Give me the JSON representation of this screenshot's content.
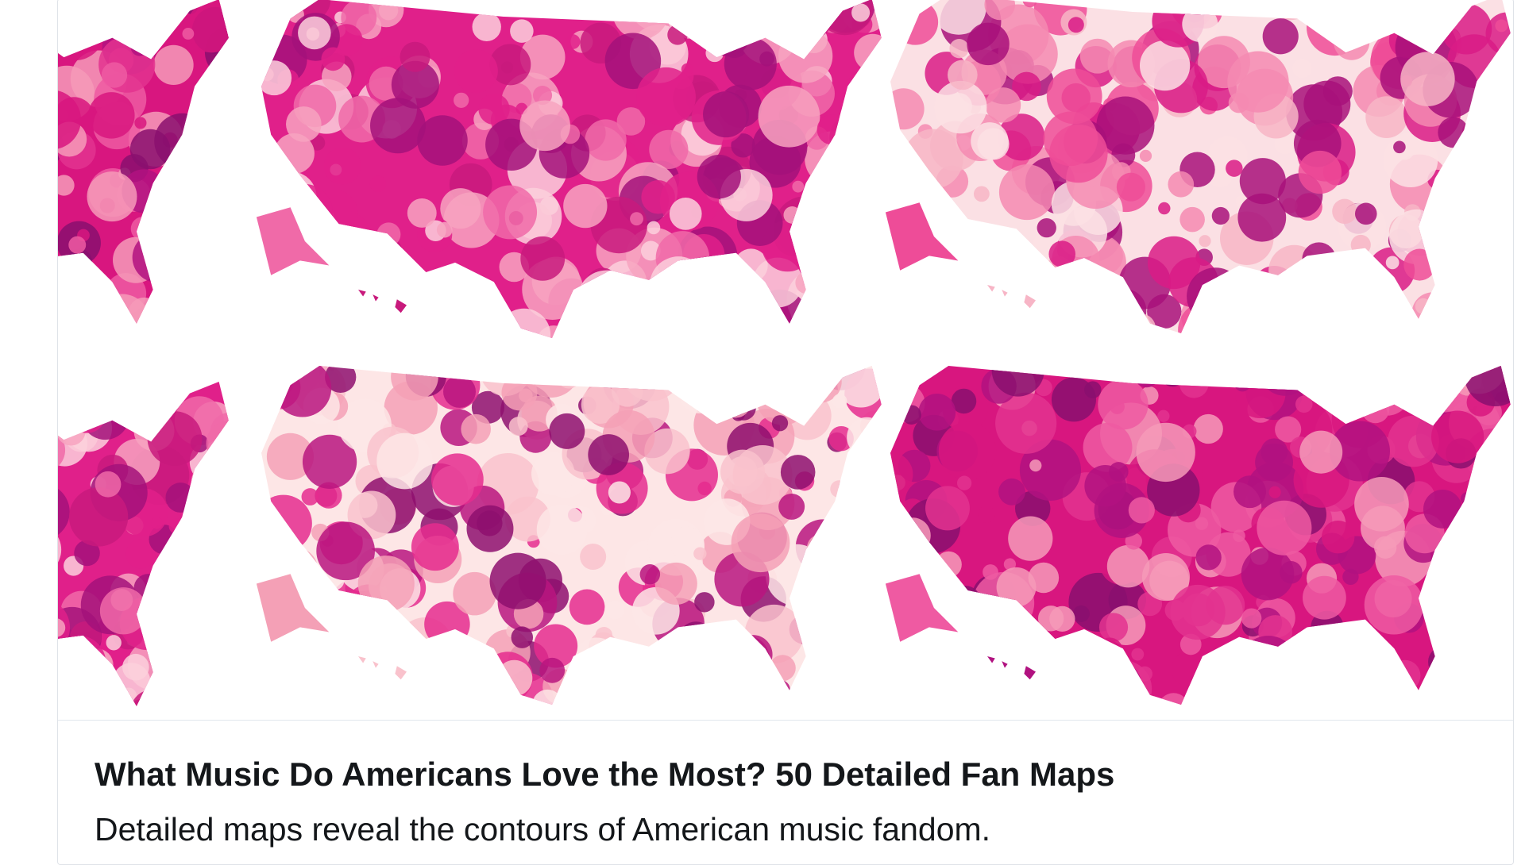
{
  "card": {
    "title": "What Music Do Americans Love the Most? 50 Detailed Fan Maps",
    "description": "Detailed maps reveal the contours of American music fandom."
  }
}
